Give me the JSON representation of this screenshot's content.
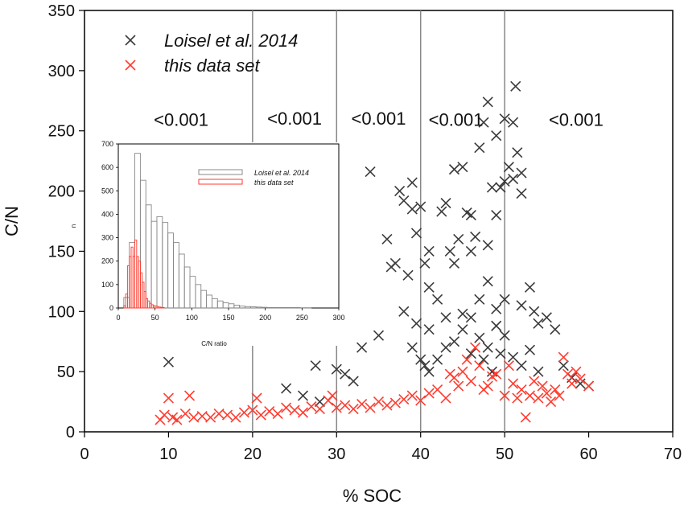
{
  "chart_data": [
    {
      "type": "scatter",
      "xlabel": "% SOC",
      "ylabel": "C/N",
      "xlim": [
        0,
        70
      ],
      "ylim": [
        0,
        350
      ],
      "x_ticks": [
        "0",
        "10",
        "20",
        "30",
        "40",
        "50",
        "60",
        "70"
      ],
      "y_ticks": [
        "0",
        "50",
        "100",
        "150",
        "200",
        "250",
        "300",
        "350"
      ],
      "vertical_lines_x": [
        20,
        30,
        40,
        50
      ],
      "band_labels": [
        {
          "text": "<0.001",
          "x": 11.5,
          "y": 254
        },
        {
          "text": "<0.001",
          "x": 25,
          "y": 255
        },
        {
          "text": "<0.001",
          "x": 35,
          "y": 255
        },
        {
          "text": "<0.001",
          "x": 44.2,
          "y": 254
        },
        {
          "text": "<0.001",
          "x": 58.5,
          "y": 254
        }
      ],
      "legend": {
        "position": "top-left",
        "entries": [
          {
            "label": "Loisel et al. 2014",
            "color": "#3a3a3a",
            "marker": "x"
          },
          {
            "label": "this data set",
            "color": "#ff3b2f",
            "marker": "x"
          }
        ]
      },
      "series": [
        {
          "name": "Loisel et al. 2014",
          "color": "#3a3a3a",
          "points": [
            [
              10,
              58
            ],
            [
              27.5,
              55
            ],
            [
              24,
              36
            ],
            [
              26,
              30
            ],
            [
              28,
              25
            ],
            [
              30,
              52
            ],
            [
              31,
              48
            ],
            [
              32,
              42
            ],
            [
              33,
              70
            ],
            [
              34,
              216
            ],
            [
              35,
              80
            ],
            [
              36,
              160
            ],
            [
              36.5,
              137
            ],
            [
              37,
              140
            ],
            [
              37.5,
              200
            ],
            [
              38,
              192
            ],
            [
              38,
              100
            ],
            [
              38.5,
              130
            ],
            [
              39,
              207
            ],
            [
              39,
              185
            ],
            [
              39.5,
              165
            ],
            [
              40,
              187
            ],
            [
              40.5,
              140
            ],
            [
              41,
              150
            ],
            [
              41,
              120
            ],
            [
              42,
              110
            ],
            [
              42.5,
              183
            ],
            [
              43,
              190
            ],
            [
              43.5,
              150
            ],
            [
              44,
              218
            ],
            [
              44.5,
              160
            ],
            [
              45,
              220
            ],
            [
              45.5,
              182
            ],
            [
              46,
              180
            ],
            [
              46.5,
              162
            ],
            [
              47,
              236
            ],
            [
              47.5,
              257
            ],
            [
              48,
              274
            ],
            [
              48.5,
              203
            ],
            [
              49,
              246
            ],
            [
              49,
              180
            ],
            [
              49.5,
              203
            ],
            [
              50,
              260
            ],
            [
              50,
              208
            ],
            [
              50.5,
              220
            ],
            [
              51,
              257
            ],
            [
              51,
              210
            ],
            [
              51.3,
              287
            ],
            [
              51.5,
              232
            ],
            [
              52,
              198
            ],
            [
              52,
              215
            ],
            [
              53,
              120
            ],
            [
              53.5,
              100
            ],
            [
              54,
              90
            ],
            [
              55,
              95
            ],
            [
              56,
              85
            ],
            [
              57,
              55
            ],
            [
              58,
              45
            ],
            [
              59,
              40
            ],
            [
              60,
              38
            ],
            [
              46,
              95
            ],
            [
              47,
              110
            ],
            [
              48,
              125
            ],
            [
              49,
              102
            ],
            [
              45,
              85
            ],
            [
              44,
              75
            ],
            [
              43,
              70
            ],
            [
              42,
              60
            ],
            [
              41,
              85
            ],
            [
              39,
              70
            ],
            [
              40,
              60
            ],
            [
              46,
              65
            ],
            [
              48,
              70
            ],
            [
              50,
              80
            ],
            [
              51,
              62
            ],
            [
              52,
              55
            ],
            [
              53,
              68
            ],
            [
              54,
              50
            ],
            [
              47,
              78
            ],
            [
              49,
              88
            ],
            [
              45,
              98
            ],
            [
              44,
              140
            ],
            [
              46,
              150
            ],
            [
              48,
              155
            ],
            [
              50,
              110
            ],
            [
              52,
              105
            ],
            [
              43,
              95
            ],
            [
              41,
              50
            ],
            [
              39.5,
              90
            ],
            [
              40.5,
              55
            ],
            [
              47.5,
              60
            ],
            [
              48.5,
              50
            ],
            [
              49.5,
              65
            ]
          ]
        },
        {
          "name": "this data set",
          "color": "#ff3b2f",
          "points": [
            [
              9,
              10
            ],
            [
              9.5,
              14
            ],
            [
              10,
              28
            ],
            [
              10.5,
              12
            ],
            [
              11,
              10
            ],
            [
              12,
              15
            ],
            [
              12.5,
              30
            ],
            [
              13,
              12
            ],
            [
              14,
              13
            ],
            [
              15,
              12
            ],
            [
              16,
              15
            ],
            [
              17,
              14
            ],
            [
              18,
              12
            ],
            [
              19,
              16
            ],
            [
              20,
              18
            ],
            [
              20.5,
              28
            ],
            [
              21,
              14
            ],
            [
              22,
              17
            ],
            [
              23,
              15
            ],
            [
              24,
              20
            ],
            [
              25,
              18
            ],
            [
              26,
              16
            ],
            [
              27,
              21
            ],
            [
              28,
              19
            ],
            [
              29,
              26
            ],
            [
              29.5,
              30
            ],
            [
              30,
              20
            ],
            [
              31,
              22
            ],
            [
              32,
              19
            ],
            [
              33,
              23
            ],
            [
              34,
              20
            ],
            [
              35,
              25
            ],
            [
              36,
              22
            ],
            [
              37,
              24
            ],
            [
              38,
              27
            ],
            [
              39,
              30
            ],
            [
              40,
              26
            ],
            [
              41,
              32
            ],
            [
              42,
              35
            ],
            [
              43,
              28
            ],
            [
              44,
              45
            ],
            [
              45,
              50
            ],
            [
              45.5,
              60
            ],
            [
              46,
              42
            ],
            [
              47,
              55
            ],
            [
              48,
              38
            ],
            [
              49,
              48
            ],
            [
              50,
              30
            ],
            [
              51,
              40
            ],
            [
              52,
              35
            ],
            [
              53,
              30
            ],
            [
              54,
              28
            ],
            [
              55,
              32
            ],
            [
              56,
              35
            ],
            [
              57,
              62
            ],
            [
              58,
              40
            ],
            [
              58.5,
              50
            ],
            [
              59,
              44
            ],
            [
              60,
              38
            ],
            [
              52.5,
              12
            ],
            [
              46.5,
              70
            ],
            [
              44.5,
              38
            ],
            [
              43.5,
              48
            ],
            [
              47.5,
              35
            ],
            [
              48.5,
              46
            ],
            [
              50.5,
              55
            ],
            [
              51.5,
              28
            ],
            [
              53.5,
              42
            ],
            [
              54.5,
              38
            ],
            [
              55.5,
              25
            ],
            [
              56.5,
              30
            ],
            [
              57.5,
              48
            ]
          ]
        }
      ]
    },
    {
      "type": "bar",
      "xlabel": "C/N ratio",
      "ylabel": "n",
      "xlim": [
        0,
        300
      ],
      "ylim": [
        0,
        700
      ],
      "x_ticks": [
        "0",
        "50",
        "100",
        "150",
        "200",
        "250",
        "300"
      ],
      "y_ticks": [
        "0",
        "100",
        "200",
        "300",
        "400",
        "500",
        "600",
        "700"
      ],
      "bin_width": 7.5,
      "legend": {
        "position": "top-right",
        "entries": [
          {
            "label": "Loisel et al. 2014",
            "color": "#888888"
          },
          {
            "label": "this data set",
            "color": "#ff3b2f"
          }
        ]
      },
      "series": [
        {
          "name": "Loisel et al. 2014",
          "color": "#888888",
          "bin_starts": [
            7.5,
            15,
            22.5,
            30,
            37.5,
            45,
            52.5,
            60,
            67.5,
            75,
            82.5,
            90,
            97.5,
            105,
            112.5,
            120,
            127.5,
            135,
            142.5,
            150,
            157.5,
            165,
            172.5,
            180,
            187.5,
            195,
            202.5,
            210,
            217.5,
            225,
            232.5,
            240,
            247.5,
            255
          ],
          "values": [
            45,
            280,
            660,
            545,
            440,
            370,
            390,
            365,
            320,
            280,
            230,
            175,
            135,
            100,
            75,
            55,
            40,
            30,
            22,
            18,
            12,
            8,
            6,
            5,
            4,
            3,
            2,
            2,
            2,
            2,
            2,
            2,
            1,
            1
          ]
        },
        {
          "name": "this data set",
          "color": "#ff3b2f",
          "bin_starts": [
            7.5,
            10,
            12.5,
            15,
            17.5,
            20,
            22.5,
            25,
            27.5,
            30,
            32.5,
            35,
            37.5,
            40,
            42.5,
            45,
            47.5,
            50,
            52.5,
            55,
            57.5,
            60
          ],
          "values": [
            10,
            60,
            180,
            220,
            260,
            220,
            290,
            220,
            200,
            150,
            110,
            70,
            40,
            30,
            20,
            14,
            10,
            8,
            6,
            4,
            3,
            2
          ]
        }
      ]
    }
  ]
}
